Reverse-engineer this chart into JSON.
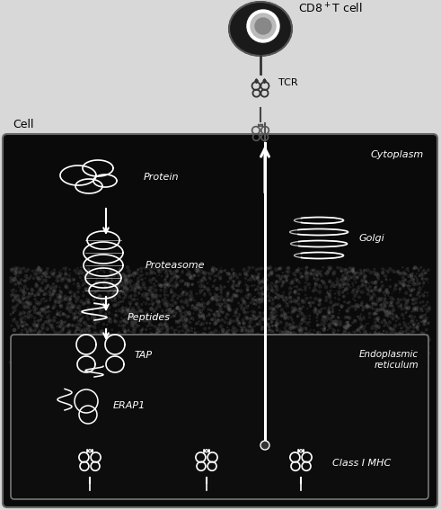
{
  "bg_color": "#e8e8e8",
  "cell_bg": "#0a0a0a",
  "er_bg": "#0d0d0d",
  "text_color_white": "#ffffff",
  "text_color_black": "#000000",
  "title_text": "CD8$^+$T cell",
  "tcr_label": "TCR",
  "cell_label": "Cell",
  "cytoplasm_label": "Cytoplasm",
  "golgi_label": "Golgi",
  "protein_label": "Protein",
  "proteasome_label": "Proteasome",
  "peptides_label": "Peptides",
  "tap_label": "TAP",
  "erap_label": "ERAP1",
  "er_label": "Endoplasmic\nreticulum",
  "classmhc_label": "Class I MHC",
  "fig_width": 4.91,
  "fig_height": 5.67
}
